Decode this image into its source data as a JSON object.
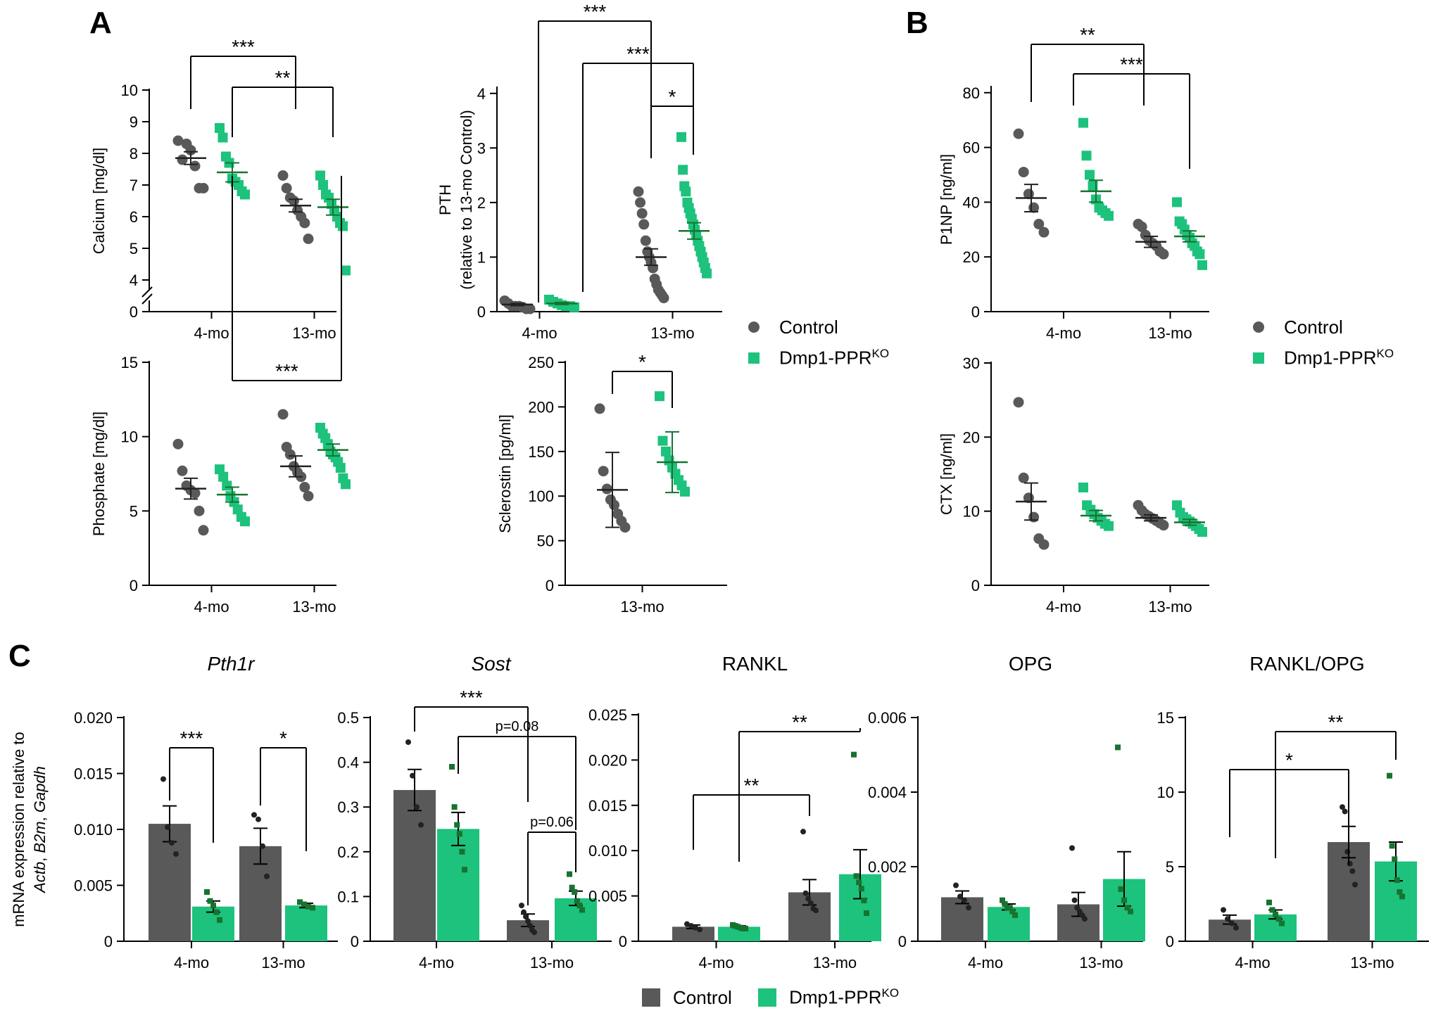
{
  "panel_labels": [
    "A",
    "B",
    "C"
  ],
  "colors": {
    "control": "#595959",
    "ko": "#1dc27c",
    "ko_point": "#17732f",
    "axis": "#000000"
  },
  "legend": {
    "control": "Control",
    "ko_main": "Dmp1-PPR",
    "ko_sup": "KO"
  },
  "chart_data": [
    {
      "id": "calcium",
      "type": "scatter",
      "panel": "A",
      "categories": [
        "4-mo",
        "13-mo"
      ],
      "ylabel": "Calcium [mg/dl]",
      "yticks": [
        "0",
        "4",
        "5",
        "6",
        "7",
        "8",
        "9",
        "10"
      ],
      "axis_break": true,
      "series": [
        {
          "name": "Control",
          "points": [
            [
              8.4,
              7.8,
              8.3,
              8.1,
              7.6,
              6.9,
              6.9
            ],
            [
              7.3,
              6.9,
              6.6,
              6.5,
              6.2,
              6.0,
              5.8,
              5.3
            ]
          ],
          "mean": [
            7.85,
            6.35
          ],
          "sem": [
            0.2,
            0.2
          ]
        },
        {
          "name": "Dmp1-PPRKO",
          "points": [
            [
              8.8,
              8.5,
              7.9,
              7.7,
              7.2,
              7.1,
              7.0,
              6.8,
              6.7
            ],
            [
              7.3,
              7.0,
              6.7,
              6.6,
              6.4,
              6.2,
              6.0,
              5.8,
              5.7,
              4.3
            ]
          ],
          "mean": [
            7.4,
            6.3
          ],
          "sem": [
            0.3,
            0.25
          ]
        }
      ],
      "significance": [
        {
          "label": "***"
        },
        {
          "label": "**"
        }
      ]
    },
    {
      "id": "pth",
      "type": "scatter",
      "panel": "A",
      "categories": [
        "4-mo",
        "13-mo"
      ],
      "ylabel": "PTH",
      "ylabel2": "(relative to 13-mo Control)",
      "yticks": [
        "0",
        "1",
        "2",
        "3",
        "4"
      ],
      "series": [
        {
          "name": "Control",
          "points": [
            [
              0.2,
              0.15,
              0.1,
              0.1,
              0.1,
              0.08,
              0.05,
              0.05
            ],
            [
              2.2,
              2.0,
              1.8,
              1.6,
              1.3,
              1.1,
              1.0,
              0.9,
              0.8,
              0.6,
              0.5,
              0.4,
              0.35,
              0.3,
              0.25
            ]
          ],
          "mean": [
            0.13,
            1.0
          ],
          "sem": [
            0.02,
            0.15
          ]
        },
        {
          "name": "Dmp1-PPRKO",
          "points": [
            [
              0.22,
              0.18,
              0.15,
              0.12,
              0.1,
              0.1,
              0.08
            ],
            [
              3.2,
              2.6,
              2.3,
              2.2,
              2.0,
              1.9,
              1.8,
              1.7,
              1.6,
              1.5,
              1.4,
              1.3,
              1.2,
              1.1,
              1.0,
              0.9,
              0.8,
              0.7
            ]
          ],
          "mean": [
            0.15,
            1.48
          ],
          "sem": [
            0.02,
            0.15
          ]
        }
      ],
      "significance": [
        {
          "label": "***"
        },
        {
          "label": "***"
        },
        {
          "label": "*"
        }
      ]
    },
    {
      "id": "p1np",
      "type": "scatter",
      "panel": "B",
      "categories": [
        "4-mo",
        "13-mo"
      ],
      "ylabel": "P1NP [ng/ml]",
      "yticks": [
        "0",
        "20",
        "40",
        "60",
        "80"
      ],
      "series": [
        {
          "name": "Control",
          "points": [
            [
              65,
              51,
              43,
              38,
              32,
              29
            ],
            [
              32,
              31,
              28,
              26,
              25,
              24,
              22,
              21
            ]
          ],
          "mean": [
            41.5,
            25.5
          ],
          "sem": [
            5,
            2
          ]
        },
        {
          "name": "Dmp1-PPRKO",
          "points": [
            [
              69,
              57,
              50,
              46,
              41,
              38,
              37,
              36,
              35
            ],
            [
              40,
              33,
              32,
              30,
              28,
              27,
              25,
              24,
              22,
              21,
              17
            ]
          ],
          "mean": [
            44,
            27.5
          ],
          "sem": [
            4,
            2
          ]
        }
      ],
      "significance": [
        {
          "label": "**"
        },
        {
          "label": "***"
        }
      ]
    },
    {
      "id": "phosphate",
      "type": "scatter",
      "panel": "A",
      "categories": [
        "4-mo",
        "13-mo"
      ],
      "ylabel": "Phosphate [mg/dl]",
      "yticks": [
        "0",
        "5",
        "10",
        "15"
      ],
      "series": [
        {
          "name": "Control",
          "points": [
            [
              9.5,
              7.7,
              6.7,
              6.4,
              6.2,
              5.0,
              3.7
            ],
            [
              11.5,
              9.3,
              8.8,
              8.0,
              7.6,
              7.3,
              6.6,
              6.0
            ]
          ],
          "mean": [
            6.5,
            8.0
          ],
          "sem": [
            0.7,
            0.7
          ]
        },
        {
          "name": "Dmp1-PPRKO",
          "points": [
            [
              7.8,
              7.3,
              6.7,
              6.0,
              5.6,
              5.1,
              4.6,
              4.3
            ],
            [
              10.6,
              10.2,
              9.9,
              9.5,
              9.0,
              8.8,
              8.6,
              8.3,
              7.9,
              7.2,
              6.8
            ]
          ],
          "mean": [
            6.1,
            9.1
          ],
          "sem": [
            0.5,
            0.4
          ]
        }
      ],
      "significance": [
        {
          "label": "***"
        }
      ]
    },
    {
      "id": "sclerostin",
      "type": "scatter",
      "panel": "A",
      "categories": [
        "13-mo"
      ],
      "ylabel": "Sclerostin [pg/ml]",
      "yticks": [
        "0",
        "50",
        "100",
        "150",
        "200",
        "250"
      ],
      "series": [
        {
          "name": "Control",
          "points": [
            [
              198,
              128,
              108,
              96,
              90,
              80,
              72,
              65
            ]
          ],
          "mean": [
            107
          ],
          "sd": [
            42
          ]
        },
        {
          "name": "Dmp1-PPRKO",
          "points": [
            [
              212,
              162,
              150,
              140,
              132,
              125,
              118,
              112,
              105
            ]
          ],
          "mean": [
            138
          ],
          "sd": [
            34
          ]
        }
      ],
      "significance": [
        {
          "label": "*"
        }
      ]
    },
    {
      "id": "ctx",
      "type": "scatter",
      "panel": "B",
      "categories": [
        "4-mo",
        "13-mo"
      ],
      "ylabel": "CTX [ng/ml]",
      "yticks": [
        "0",
        "10",
        "20",
        "30"
      ],
      "series": [
        {
          "name": "Control",
          "points": [
            [
              24.7,
              14.5,
              11.8,
              9.2,
              6.3,
              5.5
            ],
            [
              10.8,
              10.1,
              9.6,
              9.3,
              9.0,
              8.7,
              8.4,
              8.1
            ]
          ],
          "mean": [
            11.3,
            9.1
          ],
          "sem": [
            2.5,
            0.4
          ]
        },
        {
          "name": "Dmp1-PPRKO",
          "points": [
            [
              13.2,
              10.8,
              10.2,
              9.6,
              9.1,
              8.7,
              8.3,
              8.0
            ],
            [
              10.8,
              9.8,
              9.2,
              8.9,
              8.6,
              8.3,
              8.0,
              7.6,
              7.2
            ]
          ],
          "mean": [
            9.4,
            8.5
          ],
          "sem": [
            0.7,
            0.4
          ]
        }
      ],
      "significance": []
    },
    {
      "id": "pth1r",
      "type": "bar",
      "panel": "C",
      "title": "Pth1r",
      "title_italic": true,
      "categories": [
        "4-mo",
        "13-mo"
      ],
      "ylabel": "mRNA expression relative to",
      "ylabel_genes": [
        "Actb",
        ", ",
        "B2m",
        ", ",
        "Gapdh"
      ],
      "yticks": [
        "0",
        "0.005",
        "0.010",
        "0.015",
        "0.020"
      ],
      "series": [
        {
          "name": "Control",
          "values": [
            0.0105,
            0.0085
          ],
          "sem": [
            0.0016,
            0.0016
          ],
          "points": [
            [
              0.0145,
              0.0102,
              0.0088,
              0.0078
            ],
            [
              0.0113,
              0.0109,
              0.0085,
              0.0058
            ]
          ]
        },
        {
          "name": "Dmp1-PPRKO",
          "values": [
            0.0031,
            0.0032
          ],
          "sem": [
            0.0005,
            0.0002
          ],
          "points": [
            [
              0.0044,
              0.0036,
              0.0032,
              0.0026,
              0.0019
            ],
            [
              0.0035,
              0.0033,
              0.0031,
              0.003
            ]
          ]
        }
      ],
      "significance": [
        {
          "label": "***"
        },
        {
          "label": "*"
        }
      ]
    },
    {
      "id": "sost",
      "type": "bar",
      "panel": "C",
      "title": "Sost",
      "title_italic": true,
      "categories": [
        "4-mo",
        "13-mo"
      ],
      "yticks": [
        "0",
        "0.1",
        "0.2",
        "0.3",
        "0.4",
        "0.5"
      ],
      "series": [
        {
          "name": "Control",
          "values": [
            0.338,
            0.047
          ],
          "sem": [
            0.046,
            0.014
          ],
          "points": [
            [
              0.445,
              0.37,
              0.3,
              0.26
            ],
            [
              0.08,
              0.065,
              0.055,
              0.045,
              0.035,
              0.025,
              0.02
            ]
          ]
        },
        {
          "name": "Dmp1-PPRKO",
          "values": [
            0.251,
            0.096
          ],
          "sem": [
            0.037,
            0.016
          ],
          "points": [
            [
              0.39,
              0.3,
              0.26,
              0.24,
              0.2,
              0.16
            ],
            [
              0.15,
              0.12,
              0.11,
              0.09,
              0.08,
              0.07
            ]
          ]
        }
      ],
      "significance": [
        {
          "label": "***"
        },
        {
          "label": "p=0.08"
        },
        {
          "label": "p=0.06"
        }
      ]
    },
    {
      "id": "rankl",
      "type": "bar",
      "panel": "C",
      "title": "RANKL",
      "title_italic": false,
      "categories": [
        "4-mo",
        "13-mo"
      ],
      "yticks": [
        "0",
        "0.005",
        "0.010",
        "0.015",
        "0.020",
        "0.025"
      ],
      "series": [
        {
          "name": "Control",
          "values": [
            0.0016,
            0.0054
          ],
          "sem": [
            0.0002,
            0.0014
          ],
          "points": [
            [
              0.0019,
              0.0017,
              0.0015,
              0.0013
            ],
            [
              0.0121,
              0.0053,
              0.0047,
              0.0042,
              0.0036,
              0.0034
            ]
          ]
        },
        {
          "name": "Dmp1-PPRKO",
          "values": [
            0.0016,
            0.0074
          ],
          "sem": [
            0.0001,
            0.0027
          ],
          "points": [
            [
              0.0018,
              0.0017,
              0.0016,
              0.0015,
              0.0014,
              0.0014
            ],
            [
              0.0206,
              0.0072,
              0.0065,
              0.0058,
              0.0045,
              0.0031
            ]
          ]
        }
      ],
      "significance": [
        {
          "label": "**"
        },
        {
          "label": "**"
        }
      ]
    },
    {
      "id": "opg",
      "type": "bar",
      "panel": "C",
      "title": "OPG",
      "title_italic": false,
      "categories": [
        "4-mo",
        "13-mo"
      ],
      "yticks": [
        "0",
        "0.002",
        "0.004",
        "0.006"
      ],
      "series": [
        {
          "name": "Control",
          "values": [
            0.00118,
            0.00099
          ],
          "sem": [
            0.00017,
            0.00032
          ],
          "points": [
            [
              0.0015,
              0.0012,
              0.0011,
              0.0009
            ],
            [
              0.0025,
              0.0011,
              0.0009,
              0.0008,
              0.0007,
              0.0006
            ]
          ]
        },
        {
          "name": "Dmp1-PPRKO",
          "values": [
            0.00092,
            0.00167
          ],
          "sem": [
            8e-05,
            0.00073
          ],
          "points": [
            [
              0.0011,
              0.001,
              0.0009,
              0.0009,
              0.0008,
              0.0007
            ],
            [
              0.0052,
              0.0014,
              0.0011,
              0.0009,
              0.0008
            ]
          ]
        }
      ],
      "significance": []
    },
    {
      "id": "rankl_opg",
      "type": "bar",
      "panel": "C",
      "title": "RANKL/OPG",
      "title_italic": false,
      "categories": [
        "4-mo",
        "13-mo"
      ],
      "yticks": [
        "0",
        "5",
        "10",
        "15"
      ],
      "series": [
        {
          "name": "Control",
          "values": [
            1.45,
            6.65
          ],
          "sem": [
            0.3,
            1.05
          ],
          "points": [
            [
              2.1,
              1.5,
              1.2,
              0.9
            ],
            [
              9.0,
              8.7,
              6.0,
              5.2,
              4.7,
              3.8
            ]
          ]
        },
        {
          "name": "Dmp1-PPRKO",
          "values": [
            1.8,
            5.35
          ],
          "sem": [
            0.3,
            1.3
          ],
          "points": [
            [
              2.6,
              2.1,
              1.8,
              1.5,
              1.2
            ],
            [
              11.1,
              6.4,
              5.5,
              4.1,
              3.3,
              3.0
            ]
          ]
        }
      ],
      "significance": [
        {
          "label": "*"
        },
        {
          "label": "**"
        }
      ]
    }
  ]
}
